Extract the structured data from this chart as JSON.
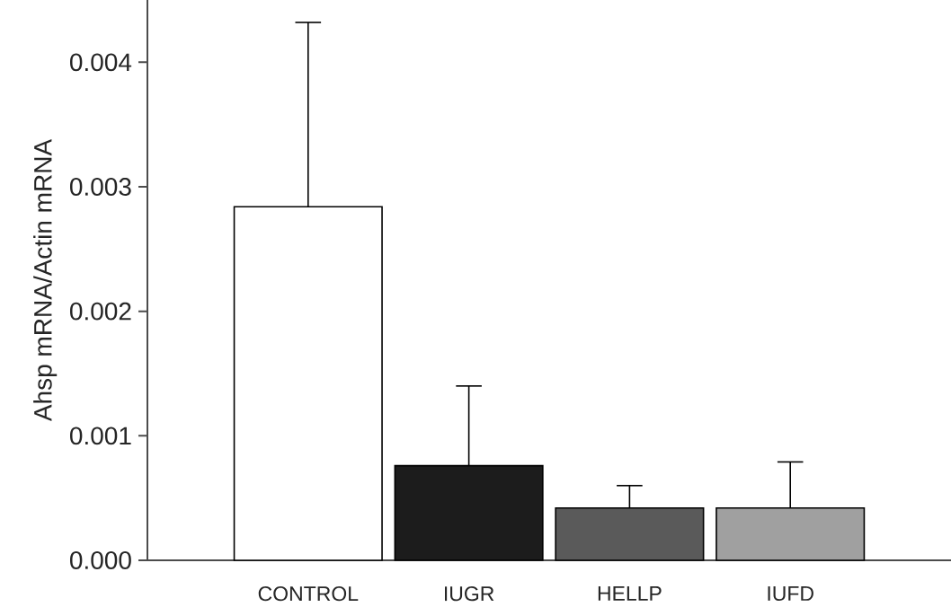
{
  "chart_data": {
    "type": "bar",
    "ylabel": "Ahsp mRNA/Actin mRNA",
    "categories": [
      "CONTROL",
      "IUGR",
      "HELLP",
      "IUFD"
    ],
    "values": [
      0.00284,
      0.00076,
      0.00042,
      0.00042
    ],
    "errors": [
      [
        0.00284,
        0.00432
      ],
      [
        0.00076,
        0.0014
      ],
      [
        0.00042,
        0.0006
      ],
      [
        0.00042,
        0.00079
      ]
    ],
    "colors": [
      "#ffffff",
      "#1c1c1c",
      "#5a5a5a",
      "#a0a0a0"
    ],
    "ylim": [
      0,
      0.0045
    ],
    "yticks": [
      {
        "value": 0,
        "label": "0.000"
      },
      {
        "value": 0.001,
        "label": "0.001"
      },
      {
        "value": 0.002,
        "label": "0.002"
      },
      {
        "value": 0.003,
        "label": "0.003"
      },
      {
        "value": 0.004,
        "label": "0.004"
      }
    ],
    "grid": false
  }
}
